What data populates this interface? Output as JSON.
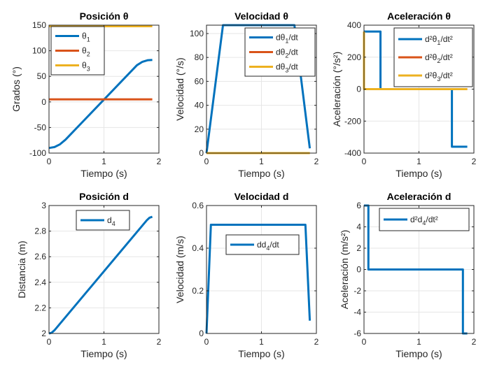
{
  "chart_data": [
    {
      "type": "line",
      "title": "Posición θ",
      "xlabel": "Tiempo (s)",
      "ylabel": "Grados (°)",
      "xlim": [
        0,
        2
      ],
      "ylim": [
        -100,
        150
      ],
      "xticks": [
        0,
        1,
        2
      ],
      "yticks": [
        -100,
        -50,
        0,
        50,
        100,
        150
      ],
      "grid": true,
      "legend": "top-left",
      "series": [
        {
          "name": "θ1",
          "label_main": "θ",
          "label_sub": "1",
          "color": "#0072BD",
          "x": [
            0,
            0.1,
            0.2,
            0.3,
            1.6,
            1.7,
            1.8,
            1.88
          ],
          "y": [
            -90,
            -88.2,
            -82.8,
            -73.8,
            71.7,
            78.4,
            81.6,
            82.0
          ]
        },
        {
          "name": "θ2",
          "label_main": "θ",
          "label_sub": "2",
          "color": "#D95319",
          "x": [
            0,
            1.88
          ],
          "y": [
            5,
            5
          ]
        },
        {
          "name": "θ3",
          "label_main": "θ",
          "label_sub": "3",
          "color": "#EDB120",
          "x": [
            0,
            1.88
          ],
          "y": [
            148,
            148
          ]
        }
      ]
    },
    {
      "type": "line",
      "title": "Velocidad θ",
      "xlabel": "Tiempo (s)",
      "ylabel": "Velocidad (°/s)",
      "xlim": [
        0,
        2
      ],
      "ylim": [
        0,
        107
      ],
      "xticks": [
        0,
        1,
        2
      ],
      "yticks": [
        0,
        20,
        40,
        60,
        80,
        100
      ],
      "grid": true,
      "legend": "top-right",
      "series": [
        {
          "name": "dθ1/dt",
          "label_main": "dθ",
          "label_sub": "1",
          "label_tail": "/dt",
          "color": "#0072BD",
          "x": [
            0,
            0.3,
            1.6,
            1.88
          ],
          "y": [
            0,
            107,
            107,
            4
          ]
        },
        {
          "name": "dθ2/dt",
          "label_main": "dθ",
          "label_sub": "2",
          "label_tail": "/dt",
          "color": "#D95319",
          "x": [
            0,
            1.88
          ],
          "y": [
            0,
            0
          ]
        },
        {
          "name": "dθ3/dt",
          "label_main": "dθ",
          "label_sub": "3",
          "label_tail": "/dt",
          "color": "#EDB120",
          "x": [
            0,
            1.88
          ],
          "y": [
            0,
            0
          ]
        }
      ]
    },
    {
      "type": "line",
      "title": "Aceleración θ",
      "xlabel": "Tiempo (s)",
      "ylabel": "Aceleración (°/s²)",
      "xlim": [
        0,
        2
      ],
      "ylim": [
        -400,
        400
      ],
      "xticks": [
        0,
        1,
        2
      ],
      "yticks": [
        -400,
        -200,
        0,
        200,
        400
      ],
      "grid": true,
      "legend": "top-right",
      "series": [
        {
          "name": "d²θ1/dt²",
          "label_main": "d²θ",
          "label_sub": "1",
          "label_tail": "/dt²",
          "color": "#0072BD",
          "x": [
            0,
            0.3,
            0.3,
            1.6,
            1.6,
            1.88
          ],
          "y": [
            360,
            360,
            0,
            0,
            -360,
            -360
          ]
        },
        {
          "name": "d²θ2/dt²",
          "label_main": "d²θ",
          "label_sub": "2",
          "label_tail": "/dt²",
          "color": "#D95319",
          "x": [
            0,
            1.88
          ],
          "y": [
            0,
            0
          ]
        },
        {
          "name": "d²θ3/dt²",
          "label_main": "d²θ",
          "label_sub": "3",
          "label_tail": "/dt²",
          "color": "#EDB120",
          "x": [
            0,
            0,
            1.88
          ],
          "y": [
            360,
            0,
            0
          ]
        }
      ]
    },
    {
      "type": "line",
      "title": "Posición d",
      "xlabel": "Tiempo (s)",
      "ylabel": "Distancia (m)",
      "xlim": [
        0,
        2
      ],
      "ylim": [
        2,
        3
      ],
      "xticks": [
        0,
        1,
        2
      ],
      "yticks": [
        2,
        2.2,
        2.4,
        2.6,
        2.8,
        3
      ],
      "grid": true,
      "legend": "top-center",
      "series": [
        {
          "name": "d4",
          "label_main": "d",
          "label_sub": "4",
          "color": "#0072BD",
          "x": [
            0,
            0.05,
            0.1,
            1.78,
            1.83,
            1.88
          ],
          "y": [
            2.0,
            2.006,
            2.025,
            2.885,
            2.905,
            2.912
          ]
        }
      ]
    },
    {
      "type": "line",
      "title": "Velocidad d",
      "xlabel": "Tiempo (s)",
      "ylabel": "Velocidad (m/s)",
      "xlim": [
        0,
        2
      ],
      "ylim": [
        0,
        0.6
      ],
      "xticks": [
        0,
        1,
        2
      ],
      "yticks": [
        0,
        0.2,
        0.4,
        0.6
      ],
      "grid": true,
      "legend": "center",
      "series": [
        {
          "name": "dd4/dt",
          "label_main": "dd",
          "label_sub": "4",
          "label_tail": "/dt",
          "color": "#0072BD",
          "x": [
            0,
            0.08,
            1.8,
            1.88
          ],
          "y": [
            0,
            0.51,
            0.51,
            0.06
          ]
        }
      ]
    },
    {
      "type": "line",
      "title": "Aceleración d",
      "xlabel": "Tiempo (s)",
      "ylabel": "Aceleración (m/s²)",
      "xlim": [
        0,
        2
      ],
      "ylim": [
        -6,
        6
      ],
      "xticks": [
        0,
        1,
        2
      ],
      "yticks": [
        -6,
        -4,
        -2,
        0,
        2,
        4,
        6
      ],
      "grid": true,
      "legend": "top-left",
      "series": [
        {
          "name": "d²d4/dt²",
          "label_main": "d²d",
          "label_sub": "4",
          "label_tail": "/dt²",
          "color": "#0072BD",
          "x": [
            0,
            0.08,
            0.08,
            1.8,
            1.8,
            1.88
          ],
          "y": [
            6,
            6,
            0,
            0,
            -6,
            -6
          ]
        }
      ]
    }
  ]
}
